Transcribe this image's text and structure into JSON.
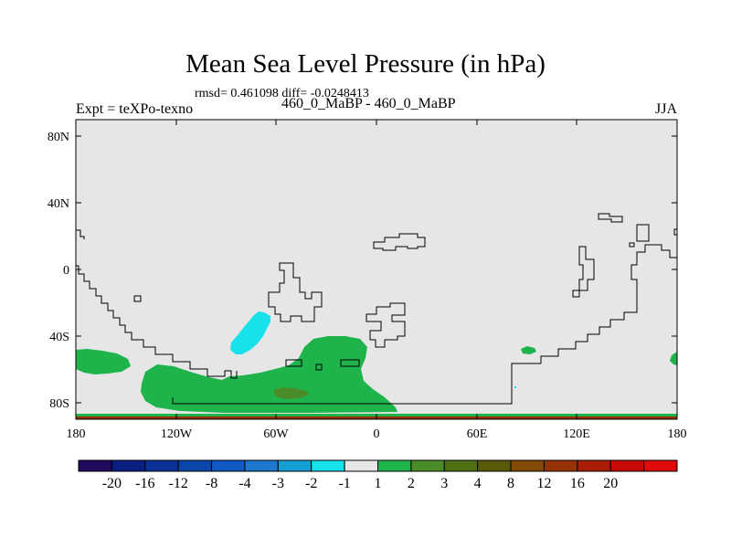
{
  "title": "Mean Sea Level Pressure (in hPa)",
  "stats": "rmsd= 0.461098 diff= -0.0248413",
  "left_label": "Expt = teXPo-texno",
  "center_label": "460_0_MaBP - 460_0_MaBP",
  "right_label": "JJA",
  "map": {
    "background_color": "#e6e6e6",
    "lat_ticks": [
      {
        "label": "80N",
        "lat": 80
      },
      {
        "label": "40N",
        "lat": 40
      },
      {
        "label": "0",
        "lat": 0
      },
      {
        "label": "40S",
        "lat": -40
      },
      {
        "label": "80S",
        "lat": -80
      }
    ],
    "lon_ticks": [
      {
        "label": "180",
        "lon": -180
      },
      {
        "label": "120W",
        "lon": -120
      },
      {
        "label": "60W",
        "lon": -60
      },
      {
        "label": "0",
        "lon": 0
      },
      {
        "label": "60E",
        "lon": 60
      },
      {
        "label": "120E",
        "lon": 120
      },
      {
        "label": "180",
        "lon": 180
      }
    ]
  },
  "colorbar": {
    "colors": [
      "#1f0a5e",
      "#0a1f82",
      "#0a3296",
      "#0a46aa",
      "#0f5ac3",
      "#1e78cd",
      "#14a0d2",
      "#18e1eb",
      "#e6e6e6",
      "#1eb44b",
      "#4b8c28",
      "#506e14",
      "#5a5a0a",
      "#824b0a",
      "#963205",
      "#aa1e05",
      "#c80a05",
      "#e10a0a"
    ],
    "labels": [
      "-20",
      "-16",
      "-12",
      "-8",
      "-4",
      "-3",
      "-2",
      "-1",
      "1",
      "2",
      "3",
      "4",
      "8",
      "12",
      "16",
      "20"
    ]
  }
}
